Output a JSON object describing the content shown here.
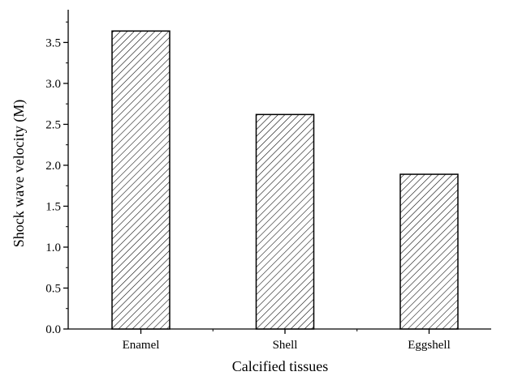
{
  "chart_data": {
    "type": "bar",
    "categories": [
      "Enamel",
      "Shell",
      "Eggshell"
    ],
    "values": [
      3.64,
      2.62,
      1.89
    ],
    "xlabel": "Calcified tissues",
    "ylabel": "Shock wave velocity (M)",
    "ylim": [
      0,
      3.9
    ],
    "yticks": [
      "0.0",
      "0.5",
      "1.0",
      "1.5",
      "2.0",
      "2.5",
      "3.0",
      "3.5"
    ],
    "bar_fill": "hatched",
    "bar_color": "#000000",
    "grid": false,
    "legend": "none"
  }
}
